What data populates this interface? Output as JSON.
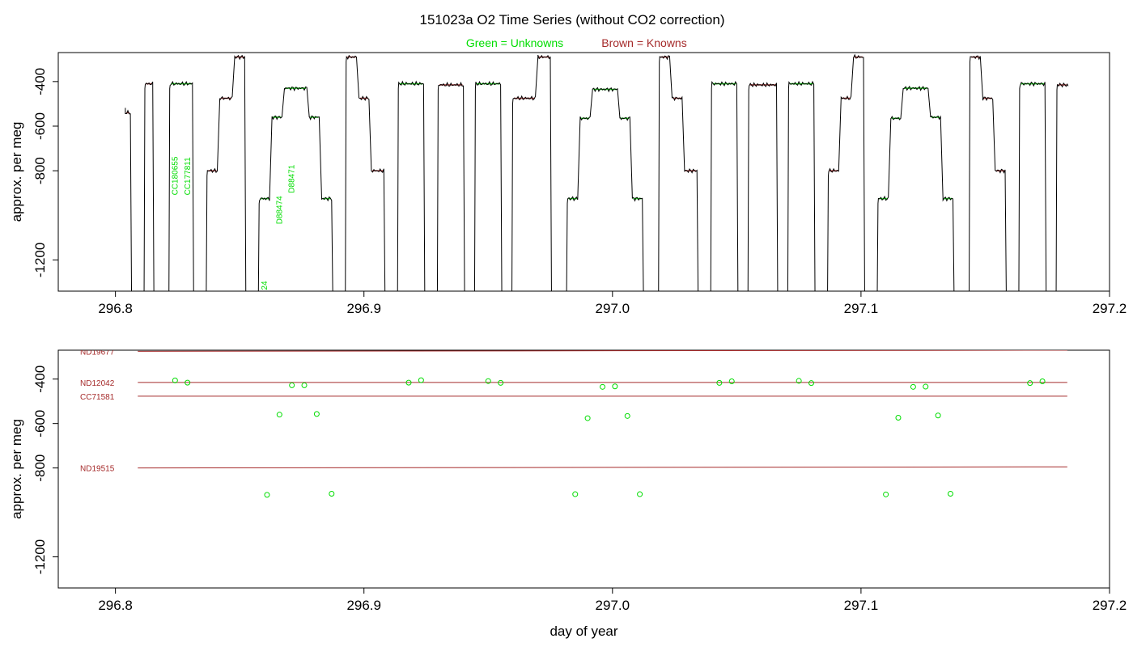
{
  "title": "151023a   O2 Time Series (without CO2 correction)",
  "legend": {
    "unknowns": "Green = Unknowns",
    "knowns": "Brown = Knowns"
  },
  "colors": {
    "unknown": "#00dd00",
    "known": "#a52a2a",
    "axis": "#000000"
  },
  "chart_data": [
    {
      "type": "line",
      "xlabel": "",
      "ylabel": "approx. per meg",
      "xlim": [
        296.777,
        297.2
      ],
      "ylim": [
        -1340,
        -270
      ],
      "x_ticks": [
        "296.8",
        "296.9",
        "297.0",
        "297.1",
        "297.2"
      ],
      "x_tick_values": [
        296.8,
        296.9,
        297.0,
        297.1,
        297.2
      ],
      "y_ticks": [
        "-400",
        "-600",
        "-800",
        "-1200"
      ],
      "y_tick_values": [
        -400,
        -600,
        -800,
        -1200
      ],
      "sample_labels": [
        {
          "text": "CC180655",
          "x": 296.825,
          "y": -910
        },
        {
          "text": "CC177811",
          "x": 296.83,
          "y": -910
        },
        {
          "text": "D88474",
          "x": 296.867,
          "y": -1040
        },
        {
          "text": "D88471",
          "x": 296.872,
          "y": -900
        },
        {
          "text": "24",
          "x": 296.861,
          "y": -1335
        }
      ],
      "segments": [
        {
          "x0": 296.804,
          "x1": 296.806,
          "y": -540,
          "kind": "known"
        },
        {
          "x0": 296.812,
          "x1": 296.815,
          "y": -410,
          "kind": "known"
        },
        {
          "x0": 296.822,
          "x1": 296.831,
          "y": -410,
          "kind": "unknown"
        },
        {
          "x0": 296.837,
          "x1": 296.841,
          "y": -800,
          "kind": "known"
        },
        {
          "x0": 296.842,
          "x1": 296.847,
          "y": -475,
          "kind": "known"
        },
        {
          "x0": 296.848,
          "x1": 296.852,
          "y": -290,
          "kind": "known"
        },
        {
          "x0": 296.858,
          "x1": 296.862,
          "y": -925,
          "kind": "unknown"
        },
        {
          "x0": 296.863,
          "x1": 296.867,
          "y": -560,
          "kind": "unknown"
        },
        {
          "x0": 296.868,
          "x1": 296.877,
          "y": -430,
          "kind": "unknown"
        },
        {
          "x0": 296.878,
          "x1": 296.882,
          "y": -560,
          "kind": "unknown"
        },
        {
          "x0": 296.883,
          "x1": 296.887,
          "y": -925,
          "kind": "unknown"
        },
        {
          "x0": 296.893,
          "x1": 296.897,
          "y": -290,
          "kind": "known"
        },
        {
          "x0": 296.898,
          "x1": 296.902,
          "y": -475,
          "kind": "known"
        },
        {
          "x0": 296.903,
          "x1": 296.908,
          "y": -800,
          "kind": "known"
        },
        {
          "x0": 296.914,
          "x1": 296.924,
          "y": -410,
          "kind": "unknown"
        },
        {
          "x0": 296.93,
          "x1": 296.94,
          "y": -415,
          "kind": "known"
        },
        {
          "x0": 296.945,
          "x1": 296.955,
          "y": -410,
          "kind": "unknown"
        },
        {
          "x0": 296.96,
          "x1": 296.969,
          "y": -475,
          "kind": "known"
        },
        {
          "x0": 296.97,
          "x1": 296.975,
          "y": -290,
          "kind": "known"
        },
        {
          "x0": 296.982,
          "x1": 296.986,
          "y": -925,
          "kind": "unknown"
        },
        {
          "x0": 296.987,
          "x1": 296.991,
          "y": -565,
          "kind": "unknown"
        },
        {
          "x0": 296.992,
          "x1": 297.002,
          "y": -435,
          "kind": "unknown"
        },
        {
          "x0": 297.003,
          "x1": 297.007,
          "y": -565,
          "kind": "unknown"
        },
        {
          "x0": 297.008,
          "x1": 297.012,
          "y": -925,
          "kind": "unknown"
        },
        {
          "x0": 297.019,
          "x1": 297.023,
          "y": -290,
          "kind": "known"
        },
        {
          "x0": 297.024,
          "x1": 297.028,
          "y": -475,
          "kind": "known"
        },
        {
          "x0": 297.029,
          "x1": 297.034,
          "y": -800,
          "kind": "known"
        },
        {
          "x0": 297.04,
          "x1": 297.05,
          "y": -410,
          "kind": "unknown"
        },
        {
          "x0": 297.055,
          "x1": 297.066,
          "y": -415,
          "kind": "known"
        },
        {
          "x0": 297.071,
          "x1": 297.081,
          "y": -410,
          "kind": "unknown"
        },
        {
          "x0": 297.087,
          "x1": 297.091,
          "y": -800,
          "kind": "known"
        },
        {
          "x0": 297.092,
          "x1": 297.096,
          "y": -475,
          "kind": "known"
        },
        {
          "x0": 297.097,
          "x1": 297.101,
          "y": -290,
          "kind": "known"
        },
        {
          "x0": 297.107,
          "x1": 297.111,
          "y": -925,
          "kind": "unknown"
        },
        {
          "x0": 297.112,
          "x1": 297.116,
          "y": -565,
          "kind": "unknown"
        },
        {
          "x0": 297.117,
          "x1": 297.127,
          "y": -430,
          "kind": "unknown"
        },
        {
          "x0": 297.128,
          "x1": 297.132,
          "y": -560,
          "kind": "unknown"
        },
        {
          "x0": 297.133,
          "x1": 297.137,
          "y": -925,
          "kind": "unknown"
        },
        {
          "x0": 297.144,
          "x1": 297.148,
          "y": -290,
          "kind": "known"
        },
        {
          "x0": 297.149,
          "x1": 297.153,
          "y": -475,
          "kind": "known"
        },
        {
          "x0": 297.154,
          "x1": 297.158,
          "y": -800,
          "kind": "known"
        },
        {
          "x0": 297.164,
          "x1": 297.174,
          "y": -410,
          "kind": "unknown"
        },
        {
          "x0": 297.179,
          "x1": 297.183,
          "y": -415,
          "kind": "known"
        }
      ]
    },
    {
      "type": "scatter",
      "xlabel": "day of year",
      "ylabel": "approx. per meg",
      "xlim": [
        296.777,
        297.2
      ],
      "ylim": [
        -1340,
        -270
      ],
      "x_ticks": [
        "296.8",
        "296.9",
        "297.0",
        "297.1",
        "297.2"
      ],
      "x_tick_values": [
        296.8,
        296.9,
        297.0,
        297.1,
        297.2
      ],
      "y_ticks": [
        "-400",
        "-600",
        "-800",
        "-1200"
      ],
      "y_tick_values": [
        -400,
        -600,
        -800,
        -1200
      ],
      "reference_lines": [
        {
          "name": "ND19677",
          "x0": 296.809,
          "x1": 297.183,
          "y0": -275,
          "y1": -270
        },
        {
          "name": "ND12042",
          "x0": 296.809,
          "x1": 297.183,
          "y0": -415,
          "y1": -415
        },
        {
          "name": "CC71581",
          "x0": 296.809,
          "x1": 297.183,
          "y0": -477,
          "y1": -477
        },
        {
          "name": "ND19515",
          "x0": 296.809,
          "x1": 297.183,
          "y0": -800,
          "y1": -795
        }
      ],
      "points": [
        {
          "x": 296.824,
          "y": -406
        },
        {
          "x": 296.829,
          "y": -416
        },
        {
          "x": 296.861,
          "y": -921
        },
        {
          "x": 296.866,
          "y": -560
        },
        {
          "x": 296.871,
          "y": -428
        },
        {
          "x": 296.876,
          "y": -428
        },
        {
          "x": 296.881,
          "y": -557
        },
        {
          "x": 296.887,
          "y": -916
        },
        {
          "x": 296.918,
          "y": -416
        },
        {
          "x": 296.923,
          "y": -405
        },
        {
          "x": 296.95,
          "y": -409
        },
        {
          "x": 296.955,
          "y": -417
        },
        {
          "x": 296.985,
          "y": -918
        },
        {
          "x": 296.99,
          "y": -576
        },
        {
          "x": 296.996,
          "y": -435
        },
        {
          "x": 297.001,
          "y": -433
        },
        {
          "x": 297.006,
          "y": -566
        },
        {
          "x": 297.011,
          "y": -918
        },
        {
          "x": 297.043,
          "y": -417
        },
        {
          "x": 297.048,
          "y": -410
        },
        {
          "x": 297.075,
          "y": -408
        },
        {
          "x": 297.08,
          "y": -418
        },
        {
          "x": 297.11,
          "y": -919
        },
        {
          "x": 297.115,
          "y": -574
        },
        {
          "x": 297.121,
          "y": -435
        },
        {
          "x": 297.126,
          "y": -434
        },
        {
          "x": 297.131,
          "y": -564
        },
        {
          "x": 297.136,
          "y": -916
        },
        {
          "x": 297.168,
          "y": -418
        },
        {
          "x": 297.173,
          "y": -410
        }
      ]
    }
  ]
}
